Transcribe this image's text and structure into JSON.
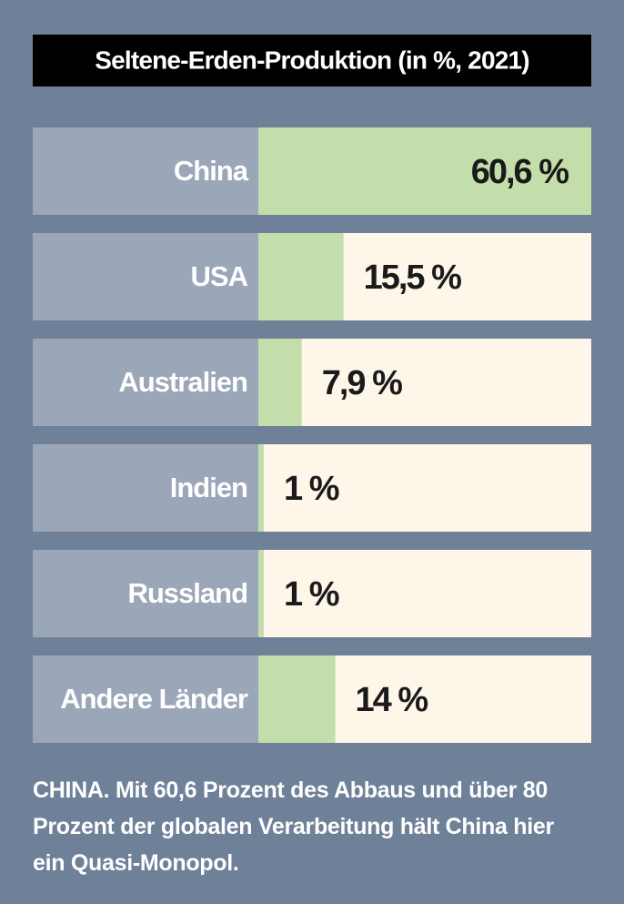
{
  "chart_data": {
    "type": "bar",
    "orientation": "horizontal",
    "title": "Seltene-Erden-Produktion (in %, 2021)",
    "categories": [
      "China",
      "USA",
      "Australien",
      "Indien",
      "Russland",
      "Andere Länder"
    ],
    "values": [
      60.6,
      15.5,
      7.9,
      1,
      1,
      14
    ],
    "value_labels": [
      "60,6 %",
      "15,5 %",
      "7,9 %",
      "1 %",
      "1 %",
      "14 %"
    ],
    "color": "#c3deaa",
    "xlim": [
      0,
      60.6
    ],
    "caption": "CHINA. Mit 60,6 Prozent des Abbaus und über 80 Prozent der globalen Verarbeitung hält China hier ein Quasi-Monopol."
  }
}
